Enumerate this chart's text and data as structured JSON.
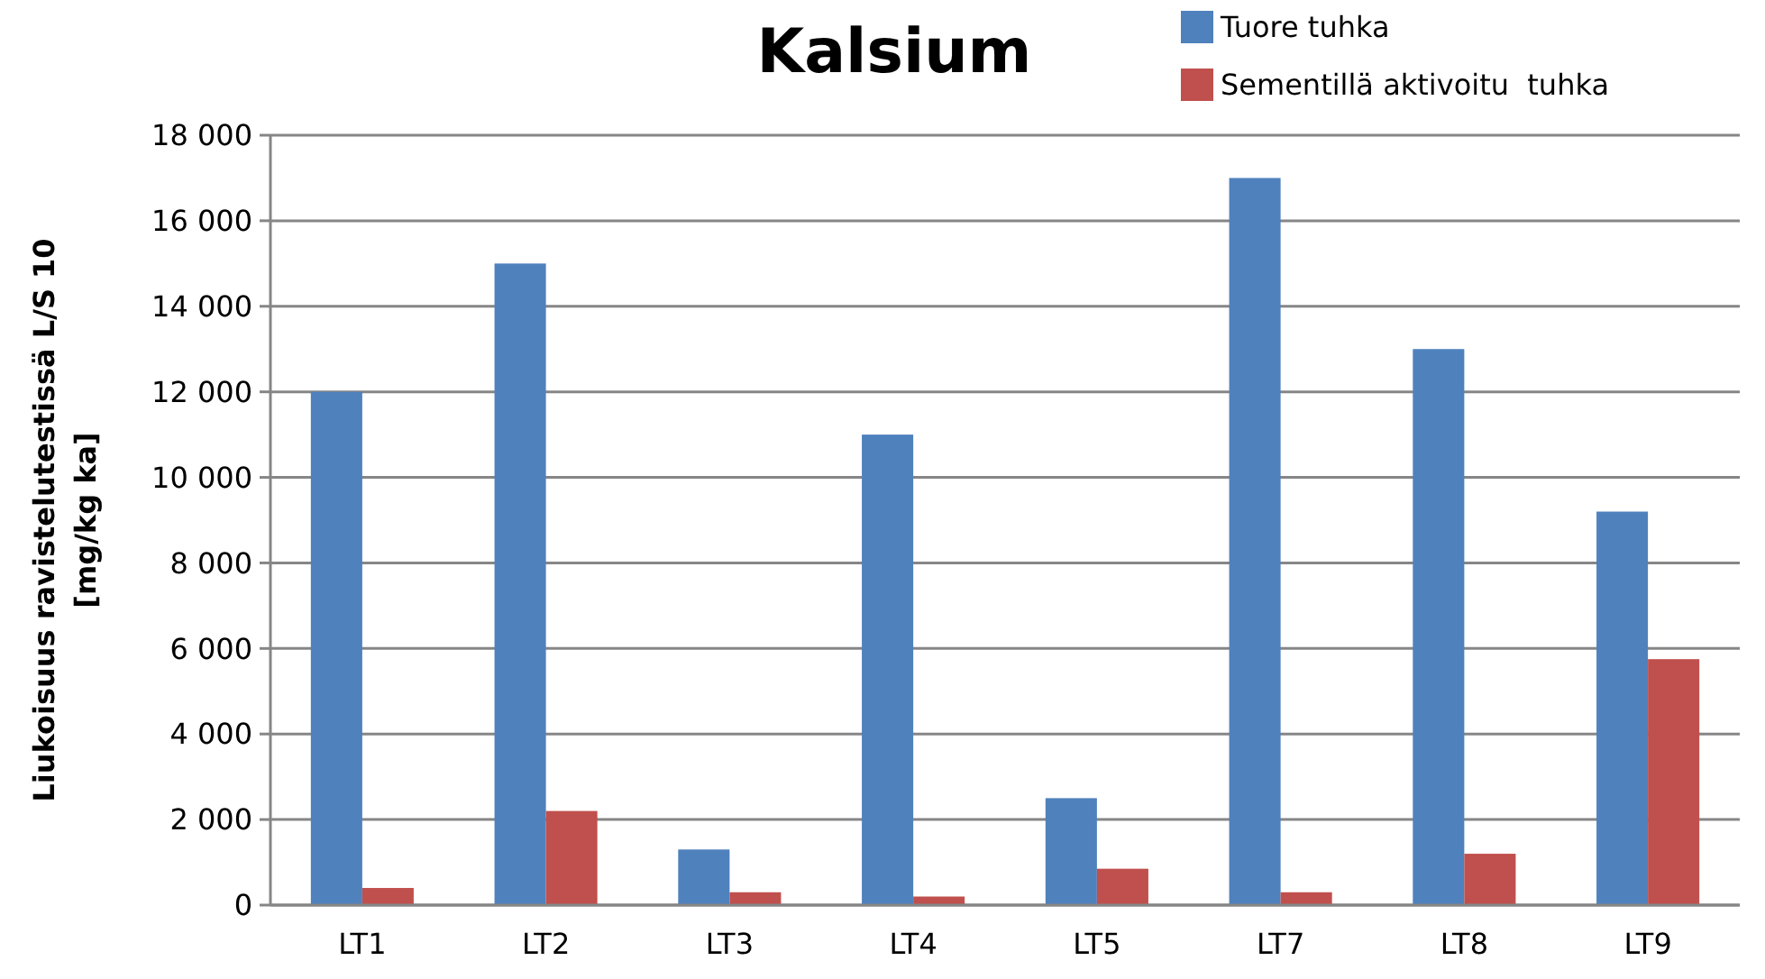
{
  "chart_data": {
    "type": "bar",
    "title": "Kalsium",
    "ylabel": "Liukoisuus ravistelutestissä L/S 10\n[mg/kg ka]",
    "categories": [
      "LT1",
      "LT2",
      "LT3",
      "LT4",
      "LT5",
      "LT7",
      "LT8",
      "LT9"
    ],
    "series": [
      {
        "name": "Tuore tuhka",
        "color": "#4f81bd",
        "values": [
          12000,
          15000,
          1300,
          11000,
          2500,
          17000,
          13000,
          9200
        ]
      },
      {
        "name": "Sementillä aktivoitu  tuhka",
        "color": "#c0504d",
        "values": [
          400,
          2200,
          300,
          200,
          850,
          300,
          1200,
          5750
        ]
      }
    ],
    "ylim": [
      0,
      18000
    ],
    "yticks": [
      {
        "value": 0,
        "label": "0"
      },
      {
        "value": 2000,
        "label": "2 000"
      },
      {
        "value": 4000,
        "label": "4 000"
      },
      {
        "value": 6000,
        "label": "6 000"
      },
      {
        "value": 8000,
        "label": "8 000"
      },
      {
        "value": 10000,
        "label": "10 000"
      },
      {
        "value": 12000,
        "label": "12 000"
      },
      {
        "value": 14000,
        "label": "14 000"
      },
      {
        "value": 16000,
        "label": "16 000"
      },
      {
        "value": 18000,
        "label": "18 000"
      }
    ],
    "grid": "y",
    "legend": "top right"
  }
}
